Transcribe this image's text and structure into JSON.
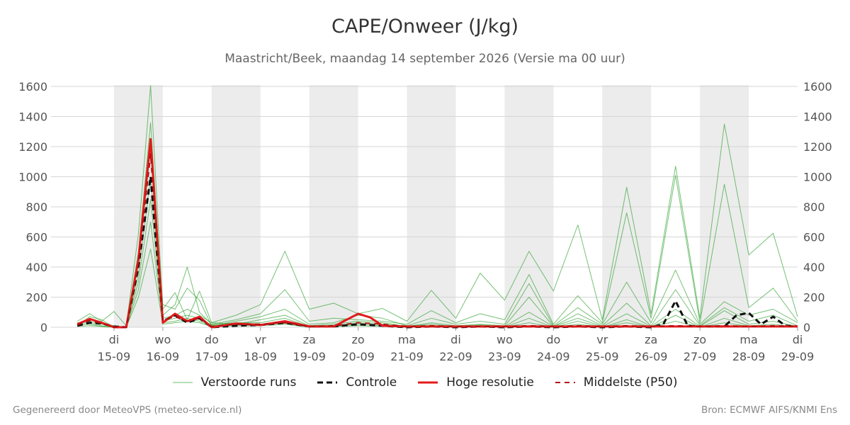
{
  "header": {
    "title": "CAPE/Onweer (J/kg)",
    "subtitle": "Maastricht/Beek, maandag 14 september 2026 (Versie ma 00 uur)"
  },
  "footer": {
    "left": "Gegenereerd door MeteoVPS (meteo-service.nl)",
    "right": "Bron: ECMWF AIFS/KNMI Ens"
  },
  "legend": [
    {
      "label": "Verstoorde runs",
      "color": "#2ca02c",
      "style": "thin"
    },
    {
      "label": "Controle",
      "color": "#111111",
      "style": "dashed"
    },
    {
      "label": "Hoge resolutie",
      "color": "#e31a1c",
      "style": "solid"
    },
    {
      "label": "Middelste (P50)",
      "color": "#b01010",
      "style": "dashed"
    }
  ],
  "chart_data": {
    "type": "line",
    "title": "CAPE/Onweer (J/kg)",
    "ylim": [
      0,
      1600
    ],
    "yticks": [
      0,
      200,
      400,
      600,
      800,
      1000,
      1200,
      1400,
      1600
    ],
    "xlim": [
      14,
      29
    ],
    "xticks": [
      {
        "day": 15,
        "top": "di",
        "bottom": "15-09"
      },
      {
        "day": 16,
        "top": "wo",
        "bottom": "16-09"
      },
      {
        "day": 17,
        "top": "do",
        "bottom": "17-09"
      },
      {
        "day": 18,
        "top": "vr",
        "bottom": "18-09"
      },
      {
        "day": 19,
        "top": "za",
        "bottom": "19-09"
      },
      {
        "day": 20,
        "top": "zo",
        "bottom": "20-09"
      },
      {
        "day": 21,
        "top": "ma",
        "bottom": "21-09"
      },
      {
        "day": 22,
        "top": "di",
        "bottom": "22-09"
      },
      {
        "day": 23,
        "top": "wo",
        "bottom": "23-09"
      },
      {
        "day": 24,
        "top": "do",
        "bottom": "24-09"
      },
      {
        "day": 25,
        "top": "vr",
        "bottom": "25-09"
      },
      {
        "day": 26,
        "top": "za",
        "bottom": "26-09"
      },
      {
        "day": 27,
        "top": "zo",
        "bottom": "27-09"
      },
      {
        "day": 28,
        "top": "ma",
        "bottom": "28-09"
      },
      {
        "day": 29,
        "top": "di",
        "bottom": "29-09"
      }
    ],
    "shaded_days": [
      [
        15,
        16
      ],
      [
        17,
        18
      ],
      [
        19,
        20
      ],
      [
        21,
        22
      ],
      [
        23,
        24
      ],
      [
        25,
        26
      ],
      [
        27,
        28
      ]
    ],
    "grid": true,
    "legend_position": "bottom",
    "series": [
      {
        "name": "Verstoorde runs",
        "role": "member",
        "x": [
          14.25,
          14.5,
          14.75,
          15,
          15.25,
          15.5,
          15.75,
          16,
          16.25,
          16.5,
          16.75,
          17,
          17.5,
          18,
          18.5,
          19,
          19.5,
          20,
          20.5,
          21,
          21.5,
          22,
          22.5,
          23,
          23.5,
          24,
          24.5,
          25,
          25.5,
          26,
          26.5,
          27,
          27.5,
          28,
          28.5,
          29
        ],
        "values": [
          40,
          90,
          40,
          105,
          10,
          620,
          1605,
          120,
          230,
          50,
          240,
          30,
          80,
          150,
          505,
          120,
          160,
          90,
          125,
          40,
          245,
          60,
          360,
          180,
          505,
          240,
          680,
          50,
          930,
          90,
          1070,
          60,
          1350,
          480,
          625,
          70
        ]
      },
      {
        "name": "Verstoorde runs",
        "role": "member",
        "x": [
          14.25,
          14.5,
          14.75,
          15,
          15.25,
          15.5,
          15.75,
          16,
          16.25,
          16.5,
          16.75,
          17,
          17.5,
          18,
          18.5,
          19,
          19.5,
          20,
          20.5,
          21,
          21.5,
          22,
          22.5,
          23,
          23.5,
          24,
          24.5,
          25,
          25.5,
          26,
          26.5,
          27,
          27.5,
          28,
          28.5,
          29
        ],
        "values": [
          20,
          60,
          30,
          10,
          0,
          500,
          1360,
          80,
          150,
          400,
          100,
          20,
          50,
          90,
          250,
          40,
          60,
          50,
          40,
          20,
          110,
          30,
          90,
          50,
          350,
          20,
          210,
          30,
          760,
          60,
          1010,
          30,
          950,
          130,
          260,
          40
        ]
      },
      {
        "name": "Verstoorde runs",
        "role": "member",
        "x": [
          14.25,
          14.5,
          14.75,
          15,
          15.25,
          15.5,
          15.75,
          16,
          16.25,
          16.5,
          16.75,
          17,
          17.5,
          18,
          18.5,
          19,
          19.5,
          20,
          20.5,
          21,
          21.5,
          22,
          22.5,
          23,
          23.5,
          24,
          24.5,
          25,
          25.5,
          26,
          26.5,
          27,
          27.5,
          28,
          28.5,
          29
        ],
        "values": [
          30,
          40,
          20,
          5,
          0,
          420,
          1180,
          150,
          120,
          260,
          180,
          10,
          40,
          70,
          120,
          20,
          30,
          80,
          60,
          10,
          60,
          20,
          40,
          20,
          290,
          10,
          130,
          20,
          300,
          30,
          380,
          20,
          170,
          80,
          120,
          30
        ]
      },
      {
        "name": "Verstoorde runs",
        "role": "member",
        "x": [
          14.25,
          14.5,
          14.75,
          15,
          15.25,
          15.5,
          15.75,
          16,
          16.25,
          16.5,
          16.75,
          17,
          17.5,
          18,
          18.5,
          19,
          19.5,
          20,
          20.5,
          21,
          21.5,
          22,
          22.5,
          23,
          23.5,
          24,
          24.5,
          25,
          25.5,
          26,
          26.5,
          27,
          27.5,
          28,
          28.5,
          29
        ],
        "values": [
          10,
          70,
          50,
          0,
          0,
          350,
          1000,
          60,
          80,
          120,
          80,
          30,
          20,
          50,
          80,
          10,
          20,
          40,
          30,
          5,
          30,
          10,
          20,
          10,
          200,
          5,
          90,
          10,
          160,
          10,
          250,
          10,
          130,
          40,
          80,
          10
        ]
      },
      {
        "name": "Verstoorde runs",
        "role": "member",
        "x": [
          14.25,
          14.5,
          14.75,
          15,
          15.25,
          15.5,
          15.75,
          16,
          16.25,
          16.5,
          16.75,
          17,
          17.5,
          18,
          18.5,
          19,
          19.5,
          20,
          20.5,
          21,
          21.5,
          22,
          22.5,
          23,
          23.5,
          24,
          24.5,
          25,
          25.5,
          26,
          26.5,
          27,
          27.5,
          28,
          28.5,
          29
        ],
        "values": [
          25,
          30,
          10,
          0,
          0,
          300,
          850,
          40,
          60,
          80,
          60,
          15,
          30,
          30,
          60,
          5,
          10,
          30,
          20,
          5,
          20,
          5,
          15,
          5,
          100,
          5,
          60,
          5,
          90,
          5,
          120,
          5,
          110,
          20,
          40,
          5
        ]
      },
      {
        "name": "Verstoorde runs",
        "role": "member",
        "x": [
          14.25,
          14.5,
          14.75,
          15,
          15.25,
          15.5,
          15.75,
          16,
          16.25,
          16.5,
          16.75,
          17,
          17.5,
          18,
          18.5,
          19,
          19.5,
          20,
          20.5,
          21,
          21.5,
          22,
          22.5,
          23,
          23.5,
          24,
          24.5,
          25,
          25.5,
          26,
          26.5,
          27,
          27.5,
          28,
          28.5,
          29
        ],
        "values": [
          15,
          20,
          5,
          0,
          0,
          250,
          700,
          30,
          40,
          60,
          40,
          10,
          15,
          20,
          40,
          5,
          5,
          20,
          10,
          0,
          10,
          5,
          10,
          0,
          60,
          0,
          40,
          0,
          50,
          0,
          80,
          0,
          60,
          10,
          20,
          0
        ]
      },
      {
        "name": "Verstoorde runs",
        "role": "member",
        "x": [
          14.25,
          14.5,
          14.75,
          15,
          15.25,
          15.5,
          15.75,
          16,
          16.25,
          16.5,
          16.75,
          17,
          17.5,
          18,
          18.5,
          19,
          19.5,
          20,
          20.5,
          21,
          21.5,
          22,
          22.5,
          23,
          23.5,
          24,
          24.5,
          25,
          25.5,
          26,
          26.5,
          27,
          27.5,
          28,
          28.5,
          29
        ],
        "values": [
          5,
          10,
          5,
          0,
          0,
          200,
          520,
          20,
          30,
          40,
          30,
          5,
          10,
          10,
          20,
          0,
          5,
          10,
          5,
          0,
          5,
          0,
          5,
          0,
          30,
          0,
          20,
          0,
          30,
          0,
          40,
          0,
          30,
          5,
          10,
          0
        ]
      },
      {
        "name": "Controle",
        "role": "control",
        "x": [
          14.25,
          14.5,
          14.75,
          15,
          15.25,
          15.5,
          15.75,
          16,
          16.25,
          16.5,
          16.75,
          17,
          17.5,
          18,
          18.5,
          19,
          19.5,
          20,
          20.5,
          21,
          21.5,
          22,
          22.5,
          23,
          23.5,
          24,
          24.5,
          25,
          25.5,
          26,
          26.25,
          26.5,
          26.75,
          27,
          27.5,
          27.75,
          28,
          28.25,
          28.5,
          28.75,
          29
        ],
        "values": [
          10,
          30,
          25,
          5,
          0,
          400,
          1000,
          40,
          80,
          30,
          60,
          0,
          10,
          15,
          30,
          5,
          5,
          20,
          10,
          0,
          5,
          0,
          5,
          0,
          5,
          0,
          5,
          0,
          5,
          0,
          20,
          175,
          10,
          5,
          5,
          80,
          95,
          20,
          70,
          10,
          5
        ]
      },
      {
        "name": "Hoge resolutie",
        "role": "highres",
        "x": [
          14.25,
          14.5,
          14.75,
          15,
          15.25,
          15.5,
          15.75,
          16,
          16.25,
          16.5,
          16.75,
          17,
          17.5,
          18,
          18.5,
          19,
          19.5,
          20,
          20.25,
          20.5,
          21,
          21.5,
          22,
          22.5,
          23,
          23.5,
          24,
          24.5,
          25,
          25.5,
          26,
          26.5,
          27,
          27.5,
          28,
          28.5,
          29
        ],
        "values": [
          20,
          55,
          30,
          0,
          0,
          450,
          1250,
          30,
          90,
          40,
          70,
          0,
          25,
          15,
          40,
          5,
          5,
          90,
          65,
          10,
          5,
          5,
          5,
          5,
          5,
          5,
          5,
          5,
          5,
          5,
          5,
          5,
          5,
          5,
          5,
          5,
          5
        ]
      },
      {
        "name": "Middelste (P50)",
        "role": "median",
        "x": [
          14.25,
          14.5,
          14.75,
          15,
          15.25,
          15.5,
          15.75,
          16,
          16.25,
          16.5,
          16.75,
          17,
          17.5,
          18,
          18.5,
          19,
          19.5,
          20,
          20.5,
          21,
          21.5,
          22,
          22.5,
          23,
          23.5,
          24,
          24.5,
          25,
          25.5,
          26,
          26.5,
          27,
          27.5,
          28,
          28.5,
          29
        ],
        "values": [
          15,
          45,
          25,
          0,
          0,
          420,
          1150,
          50,
          70,
          40,
          60,
          5,
          20,
          20,
          30,
          5,
          10,
          30,
          20,
          5,
          10,
          5,
          5,
          5,
          10,
          5,
          10,
          5,
          10,
          5,
          10,
          5,
          10,
          5,
          10,
          5
        ]
      }
    ]
  }
}
